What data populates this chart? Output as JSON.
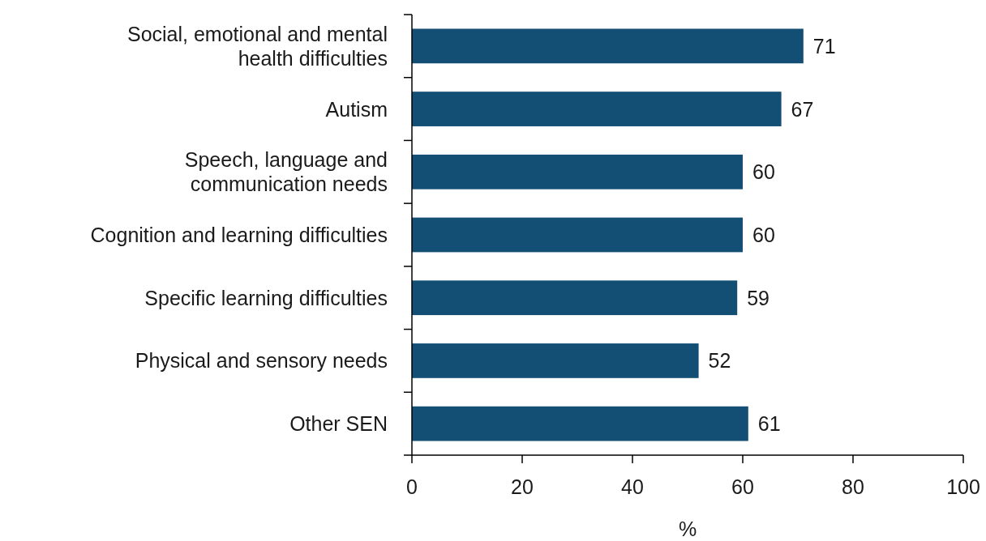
{
  "chart_data": {
    "type": "bar",
    "orientation": "horizontal",
    "categories": [
      "Social, emotional and mental\nhealth difficulties",
      "Autism",
      "Speech, language and\ncommunication needs",
      "Cognition and learning difficulties",
      "Specific learning difficulties",
      "Physical and sensory needs",
      "Other SEN"
    ],
    "values": [
      71,
      67,
      60,
      60,
      59,
      52,
      61
    ],
    "color": "#134f74",
    "xlim": [
      0,
      100
    ],
    "xticks": [
      0,
      20,
      40,
      60,
      80,
      100
    ],
    "xlabel": "%",
    "data_labels": true,
    "grid": false
  }
}
